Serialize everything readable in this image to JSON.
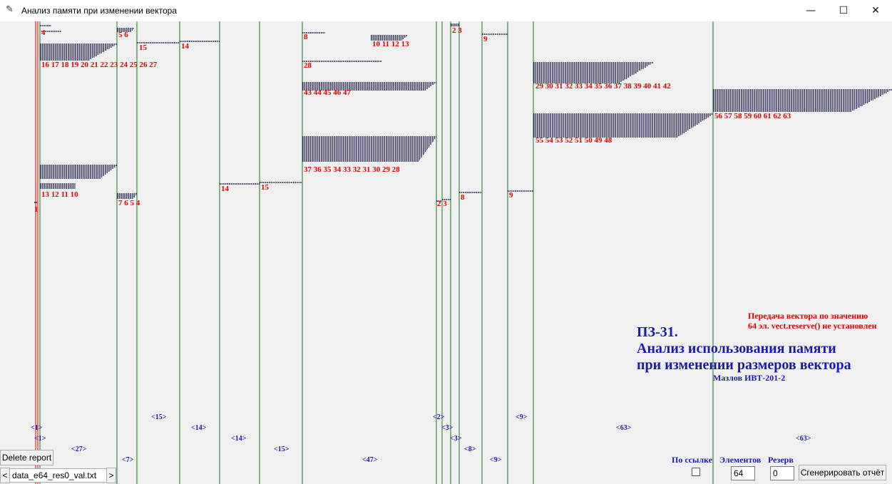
{
  "window": {
    "title": "Анализ памяти при изменении вектора",
    "icon": "feather-icon",
    "minimize_glyph": "—",
    "maximize_glyph": "☐",
    "close_glyph": "✕"
  },
  "colors": {
    "dots": "#0b0b3b",
    "red": "#e00000",
    "blue": "#1a1ab0",
    "green": "#1a7a1a"
  },
  "info": {
    "mode": "Передача вектора по значению",
    "elements": "64 эл. vect.reserve() не установлен",
    "title1": "ПЗ-31.",
    "title2": "Анализ использования памяти",
    "title3": "при изменении размеров вектора",
    "author": "Мазлов ИВТ-201-2"
  },
  "controls": {
    "delete_report": "Delete report",
    "file_name": "data_e64_res0_val.txt",
    "prev": "<",
    "next": ">",
    "by_ref_label": "По ссылке",
    "elements_label": "Элементов",
    "reserve_label": "Резерв",
    "elements_value": "64",
    "reserve_value": "0",
    "generate": "Сгенерировать отчёт"
  },
  "chart": {
    "red_labels": [
      {
        "t": "4"
      },
      {
        "t": "16 17 18 19 20 21 22 23 24 25 26 27"
      },
      {
        "t": "13 12 11 10"
      },
      {
        "t": "1"
      },
      {
        "t": "5 6"
      },
      {
        "t": "7 6 5 4"
      },
      {
        "t": "15"
      },
      {
        "t": "14"
      },
      {
        "t": "14"
      },
      {
        "t": "15"
      },
      {
        "t": "8"
      },
      {
        "t": "10 11 12 13"
      },
      {
        "t": "28"
      },
      {
        "t": "43 44 45 46 47"
      },
      {
        "t": "37 36 35 34 33 32 31 30 29 28"
      },
      {
        "t": "2 3"
      },
      {
        "t": "2 3"
      },
      {
        "t": "8"
      },
      {
        "t": "9"
      },
      {
        "t": "9"
      },
      {
        "t": "29 30 31 32 33 34 35 36 37 38 39 40 41 42"
      },
      {
        "t": "55 54 53 52 51 50 49 48"
      },
      {
        "t": "56 57 58 59 60 61 62 63"
      }
    ],
    "blue_labels": [
      {
        "t": "<1>"
      },
      {
        "t": "<1>"
      },
      {
        "t": "<27>"
      },
      {
        "t": "<7>"
      },
      {
        "t": "<15>"
      },
      {
        "t": "<14>"
      },
      {
        "t": "<14>"
      },
      {
        "t": "<15>"
      },
      {
        "t": "<47>"
      },
      {
        "t": "<2>"
      },
      {
        "t": "<3>"
      },
      {
        "t": "<3>"
      },
      {
        "t": "<8>"
      },
      {
        "t": "<9>"
      },
      {
        "t": "<9>"
      },
      {
        "t": "<63>"
      },
      {
        "t": "<63>"
      }
    ]
  }
}
